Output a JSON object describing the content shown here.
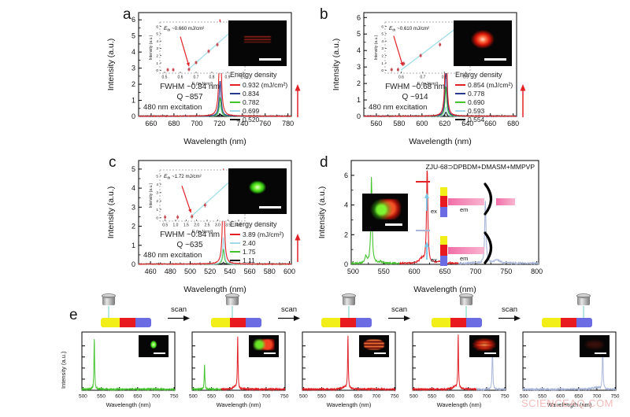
{
  "figure": {
    "watermark": "SCIENCEAQ.COM"
  },
  "panels": {
    "a": {
      "label": "a",
      "legend_title": "Energy density",
      "legend": [
        {
          "text": "0.932 (mJ/cm²)",
          "color": "#e02227"
        },
        {
          "text": "0.834",
          "color": "#283c8f"
        },
        {
          "text": "0.782",
          "color": "#46c42f"
        },
        {
          "text": "0.699",
          "color": "#a6d9e8"
        },
        {
          "text": "0.520",
          "color": "#1b1b1b"
        }
      ],
      "fwhm": "FWHM ~0.84 nm",
      "q": "Q ~857",
      "excitation": "480 nm excitation",
      "inset": {
        "eth_main": "E",
        "eth_sub": "th",
        "eth_value": " ~0.660 mJ/cm²",
        "xlabel": "E (mJ/cm²)",
        "ylabel": "Intensity (a.u.)",
        "xlim": [
          0.47,
          1.01
        ],
        "xticks": [
          0.5,
          0.6,
          0.7,
          0.8,
          0.9,
          1.0
        ],
        "ylim": [
          -0.4,
          6.6
        ],
        "yticks": [
          0,
          1,
          2,
          3,
          4,
          5,
          6
        ],
        "points": [
          [
            0.52,
            0.06
          ],
          [
            0.555,
            0.06
          ],
          [
            0.655,
            0.12
          ],
          [
            0.7,
            1.05
          ],
          [
            0.78,
            2.6
          ],
          [
            0.835,
            3.5
          ],
          [
            0.93,
            5.9
          ]
        ],
        "err": 0.3,
        "line": [
          [
            0.645,
            0
          ],
          [
            0.975,
            6.3
          ]
        ],
        "arrow": [
          [
            0.6,
            4.6
          ],
          [
            0.655,
            0.55
          ]
        ]
      }
    },
    "b": {
      "label": "b",
      "legend_title": "Energy density",
      "legend": [
        {
          "text": "0.854 (mJ/cm²)",
          "color": "#e02227"
        },
        {
          "text": "0.778",
          "color": "#283c8f"
        },
        {
          "text": "0.690",
          "color": "#46c42f"
        },
        {
          "text": "0.593",
          "color": "#a6d9e8"
        },
        {
          "text": "0.554",
          "color": "#1b1b1b"
        }
      ],
      "fwhm": "FWHM ~0.68 nm",
      "q": "Q ~914",
      "excitation": "480 nm excitation",
      "inset": {
        "eth_main": "E",
        "eth_sub": "th",
        "eth_value": " ~0.610 mJ/cm²",
        "xlabel": "E (mJ/cm²)",
        "ylabel": "Intensity (a.u.)",
        "xlim": [
          0.525,
          0.92
        ],
        "xticks": [
          0.6,
          0.7,
          0.8,
          0.9
        ],
        "ylim": [
          -0.4,
          6.6
        ],
        "yticks": [
          0,
          1,
          2,
          3,
          4,
          5,
          6
        ],
        "points": [
          [
            0.555,
            0.08
          ],
          [
            0.585,
            0.08
          ],
          [
            0.612,
            0.9
          ],
          [
            0.69,
            2.0
          ],
          [
            0.78,
            3.5
          ],
          [
            0.855,
            5.75
          ]
        ],
        "err": 0.3,
        "line": [
          [
            0.598,
            0
          ],
          [
            0.875,
            6.2
          ]
        ],
        "arrow": [
          [
            0.565,
            4.7
          ],
          [
            0.607,
            0.6
          ]
        ]
      }
    },
    "c": {
      "label": "c",
      "legend_title": "Energy density",
      "legend": [
        {
          "text": "3.89 (mJ/cm²)",
          "color": "#e02227"
        },
        {
          "text": "2.40",
          "color": "#a6d9e8"
        },
        {
          "text": "1.75",
          "color": "#46c42f"
        },
        {
          "text": "1.11",
          "color": "#1b1b1b"
        }
      ],
      "fwhm": "FWHM ~0.84 nm",
      "q": "Q ~635",
      "excitation": "480 nm excitation",
      "inset": {
        "eth_main": "E",
        "eth_sub": "th",
        "eth_value": " ~1.72 mJ/cm²",
        "xlabel": "E (mJ/cm²)",
        "ylabel": "Intensity (a.u.)",
        "xlim": [
          0.25,
          4.3
        ],
        "xticks": [
          0.5,
          1.0,
          1.5,
          2.0,
          2.5,
          3.0,
          3.5,
          4.0
        ],
        "ylim": [
          -0.4,
          5.7
        ],
        "yticks": [
          0,
          1,
          2,
          3,
          4,
          5
        ],
        "points": [
          [
            0.5,
            0.07
          ],
          [
            1.1,
            0.07
          ],
          [
            1.78,
            0.15
          ],
          [
            2.4,
            1.5
          ],
          [
            3.9,
            5.05
          ]
        ],
        "err": 0.28,
        "line": [
          [
            1.68,
            0
          ],
          [
            4.1,
            5.5
          ]
        ],
        "arrow": [
          [
            1.3,
            3.8
          ],
          [
            1.73,
            0.6
          ]
        ]
      }
    },
    "d": {
      "label": "d",
      "title": "ZJU-68⊃DPBDM+DMASM+MMPVP",
      "ex": "ex",
      "em": "em",
      "key_colors": [
        "#e02227",
        "#a9b7d9"
      ]
    },
    "e": {
      "label": "e",
      "scan": "scan",
      "ylabel": "Intensity (a.u.)",
      "bar_colors": [
        "#f2ee18",
        "#e8191f",
        "#6b6be4"
      ],
      "lens_positions": [
        0.15,
        0.42,
        0.55,
        0.68,
        0.83
      ]
    }
  },
  "chart_data": [
    {
      "id": "a",
      "type": "line",
      "xlabel": "Wavelength (nm)",
      "ylabel": "Intensity (a.u.)",
      "xlim": [
        649,
        783
      ],
      "xticks": [
        660,
        680,
        700,
        720,
        740,
        760,
        780
      ],
      "ylim": [
        0,
        6.45
      ],
      "yticks": [
        0,
        1,
        2,
        3,
        4,
        5,
        6
      ],
      "minor": true,
      "series": [
        {
          "name": "0.520",
          "color": "#1b1b1b",
          "base": 0.05,
          "peaks": [
            {
              "c": 720.5,
              "h": 0.1,
              "w": 1.0
            }
          ]
        },
        {
          "name": "0.699",
          "color": "#a6d9e8",
          "base": 0.03,
          "peaks": [
            {
              "c": 720.5,
              "h": 0.72,
              "w": 1.0
            }
          ]
        },
        {
          "name": "0.782",
          "color": "#46c42f",
          "base": 0.03,
          "peaks": [
            {
              "c": 720.5,
              "h": 1.15,
              "w": 1.0
            }
          ]
        },
        {
          "name": "0.834",
          "color": "#283c8f",
          "base": 0.03,
          "peaks": [
            {
              "c": 720.5,
              "h": 2.2,
              "w": 1.0
            }
          ]
        },
        {
          "name": "0.932",
          "color": "#e02227",
          "base": 0.03,
          "peaks": [
            {
              "c": 720.5,
              "h": 6.05,
              "w": 1.0
            }
          ]
        }
      ]
    },
    {
      "id": "b",
      "type": "line",
      "xlabel": "Wavelength (nm)",
      "ylabel": "Intensity (a.u.)",
      "xlim": [
        549,
        683
      ],
      "xticks": [
        560,
        580,
        600,
        620,
        640,
        660,
        680
      ],
      "ylim": [
        0,
        6.3
      ],
      "yticks": [
        0,
        1,
        2,
        3,
        4,
        5,
        6
      ],
      "minor": true,
      "series": [
        {
          "name": "0.554",
          "color": "#1b1b1b",
          "base": 0.05,
          "peaks": [
            {
              "c": 621,
              "h": 0.22,
              "w": 0.9
            }
          ]
        },
        {
          "name": "0.593",
          "color": "#a6d9e8",
          "base": 0.03,
          "peaks": [
            {
              "c": 621,
              "h": 0.55,
              "w": 0.9
            }
          ]
        },
        {
          "name": "0.690",
          "color": "#46c42f",
          "base": 0.03,
          "peaks": [
            {
              "c": 621,
              "h": 1.8,
              "w": 0.9
            }
          ]
        },
        {
          "name": "0.778",
          "color": "#283c8f",
          "base": 0.03,
          "peaks": [
            {
              "c": 621,
              "h": 3.25,
              "w": 0.9
            }
          ]
        },
        {
          "name": "0.854",
          "color": "#e02227",
          "base": 0.03,
          "peaks": [
            {
              "c": 621,
              "h": 5.6,
              "w": 0.9
            }
          ]
        }
      ]
    },
    {
      "id": "c",
      "type": "line",
      "xlabel": "Wavelength (nm)",
      "ylabel": "Intensity (a.u.)",
      "xlim": [
        448,
        602
      ],
      "xticks": [
        460,
        480,
        500,
        520,
        540,
        560,
        580,
        600
      ],
      "ylim": [
        0,
        5.45
      ],
      "yticks": [
        0,
        1,
        2,
        3,
        4,
        5
      ],
      "minor": true,
      "series": [
        {
          "name": "1.11",
          "color": "#1b1b1b",
          "base": 0.04,
          "peaks": [
            {
              "c": 533.5,
              "h": 0.07,
              "w": 1.0
            }
          ]
        },
        {
          "name": "1.75",
          "color": "#46c42f",
          "base": 0.03,
          "peaks": [
            {
              "c": 533.5,
              "h": 0.78,
              "w": 1.0
            }
          ]
        },
        {
          "name": "2.40",
          "color": "#a6d9e8",
          "base": 0.03,
          "peaks": [
            {
              "c": 533.5,
              "h": 1.42,
              "w": 1.0
            }
          ]
        },
        {
          "name": "3.89",
          "color": "#e02227",
          "base": 0.03,
          "peaks": [
            {
              "c": 533.5,
              "h": 5.05,
              "w": 1.0
            }
          ]
        }
      ]
    },
    {
      "id": "d",
      "type": "line",
      "title": "ZJU-68⊃DPBDM+DMASM+MMPVP",
      "xlabel": "Wavelength (nm)",
      "ylabel": "Intensity (a.u.)",
      "xlim": [
        497,
        803
      ],
      "xticks": [
        500,
        550,
        600,
        650,
        700,
        750,
        800
      ],
      "ylim": [
        0,
        7
      ],
      "yticks": [
        0,
        2,
        4,
        6
      ],
      "minor": true,
      "series": [
        {
          "name": "green-block",
          "color": "#46c42f",
          "base": 0.12,
          "range": [
            497,
            576
          ],
          "peaks": [
            {
              "c": 530,
              "h": 5.75,
              "w": 1.2
            },
            {
              "c": 521,
              "h": 0.45,
              "w": 2.0
            },
            {
              "c": 545,
              "h": 0.12,
              "w": 4
            }
          ]
        },
        {
          "name": "red-block",
          "color": "#e02227",
          "base": 0.12,
          "range": [
            576,
            672
          ],
          "peaks": [
            {
              "c": 621,
              "h": 6.45,
              "w": 1.2
            },
            {
              "c": 612,
              "h": 0.3,
              "w": 5
            },
            {
              "c": 640,
              "h": 0.1,
              "w": 6
            }
          ]
        },
        {
          "name": "blue-block",
          "color": "#a9b7d9",
          "base": 0.14,
          "range": [
            672,
            803
          ],
          "peaks": [
            {
              "c": 716,
              "h": 4.25,
              "w": 1.2
            },
            {
              "c": 735,
              "h": 0.2,
              "w": 6
            }
          ]
        }
      ]
    },
    {
      "id": "e1",
      "type": "line",
      "xlabel": "Wavelength (nm)",
      "xlim": [
        497,
        752
      ],
      "xticks": [
        500,
        550,
        600,
        650,
        700,
        750
      ],
      "ylim": [
        0,
        1.05
      ],
      "yticks": [
        0.2,
        0.4,
        0.6,
        0.8
      ],
      "ylabels": false,
      "series": [
        {
          "name": "green",
          "color": "#46c42f",
          "base": 0.035,
          "peaks": [
            {
              "c": 531,
              "h": 0.92,
              "w": 1.1
            }
          ]
        }
      ]
    },
    {
      "id": "e2",
      "type": "line",
      "xlabel": "Wavelength (nm)",
      "xlim": [
        497,
        752
      ],
      "xticks": [
        500,
        550,
        600,
        650,
        700,
        750
      ],
      "ylim": [
        0,
        1.05
      ],
      "yticks": [
        0.2,
        0.4,
        0.6,
        0.8
      ],
      "ylabels": false,
      "series": [
        {
          "name": "green",
          "color": "#46c42f",
          "base": 0.035,
          "range": [
            497,
            576
          ],
          "peaks": [
            {
              "c": 531,
              "h": 0.45,
              "w": 1.1
            }
          ]
        },
        {
          "name": "red",
          "color": "#e02227",
          "base": 0.035,
          "range": [
            576,
            752
          ],
          "peaks": [
            {
              "c": 622,
              "h": 0.95,
              "w": 1.1
            },
            {
              "c": 614,
              "h": 0.04,
              "w": 6
            }
          ]
        }
      ]
    },
    {
      "id": "e3",
      "type": "line",
      "xlabel": "Wavelength (nm)",
      "xlim": [
        497,
        752
      ],
      "xticks": [
        500,
        550,
        600,
        650,
        700,
        750
      ],
      "ylim": [
        0,
        1.05
      ],
      "yticks": [
        0.2,
        0.4,
        0.6,
        0.8
      ],
      "ylabels": false,
      "series": [
        {
          "name": "red",
          "color": "#e02227",
          "base": 0.035,
          "peaks": [
            {
              "c": 622,
              "h": 0.95,
              "w": 1.1
            },
            {
              "c": 613,
              "h": 0.04,
              "w": 7
            }
          ]
        }
      ]
    },
    {
      "id": "e4",
      "type": "line",
      "xlabel": "Wavelength (nm)",
      "xlim": [
        497,
        752
      ],
      "xticks": [
        500,
        550,
        600,
        650,
        700,
        750
      ],
      "ylim": [
        0,
        1.05
      ],
      "yticks": [
        0.2,
        0.4,
        0.6,
        0.8
      ],
      "ylabels": false,
      "series": [
        {
          "name": "red",
          "color": "#e02227",
          "base": 0.035,
          "range": [
            497,
            673
          ],
          "peaks": [
            {
              "c": 622,
              "h": 0.97,
              "w": 1.1
            },
            {
              "c": 613,
              "h": 0.05,
              "w": 6
            }
          ]
        },
        {
          "name": "blue",
          "color": "#a9b7d9",
          "base": 0.035,
          "range": [
            673,
            752
          ],
          "peaks": [
            {
              "c": 716,
              "h": 0.88,
              "w": 1.1
            }
          ]
        }
      ]
    },
    {
      "id": "e5",
      "type": "line",
      "xlabel": "Wavelength (nm)",
      "xlim": [
        497,
        752
      ],
      "xticks": [
        500,
        550,
        600,
        650,
        700,
        750
      ],
      "ylim": [
        0,
        1.05
      ],
      "yticks": [
        0.2,
        0.4,
        0.6,
        0.8
      ],
      "ylabels": false,
      "series": [
        {
          "name": "blue",
          "color": "#a9b7d9",
          "base": 0.035,
          "peaks": [
            {
              "c": 716,
              "h": 0.9,
              "w": 1.1
            },
            {
              "c": 700,
              "h": 0.03,
              "w": 10
            }
          ]
        }
      ]
    }
  ]
}
